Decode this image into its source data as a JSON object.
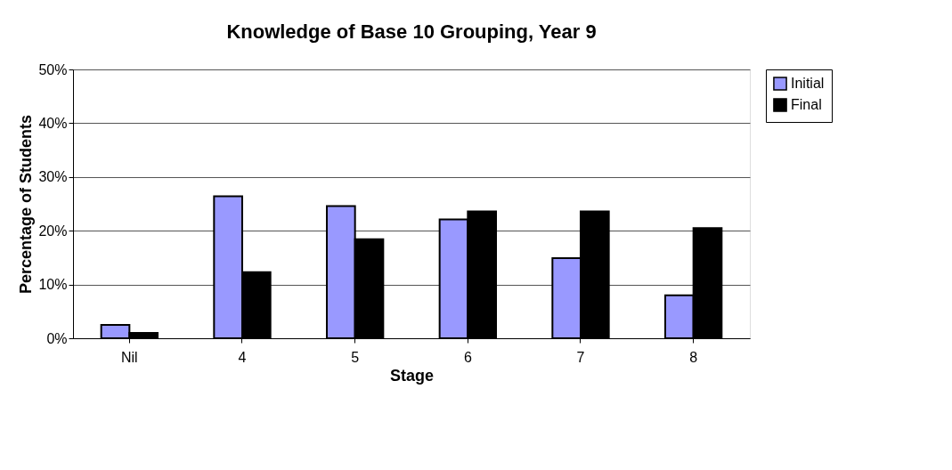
{
  "chart_data": {
    "type": "bar",
    "title": "Knowledge of Base 10 Grouping, Year 9",
    "xlabel": "Stage",
    "ylabel": "Percentage of Students",
    "categories": [
      "Nil",
      "4",
      "5",
      "6",
      "7",
      "8"
    ],
    "series": [
      {
        "name": "Initial",
        "color": "#9999ff",
        "values": [
          2.5,
          26.4,
          24.6,
          22.1,
          14.9,
          8.0
        ]
      },
      {
        "name": "Final",
        "color": "#000000",
        "values": [
          1.0,
          12.3,
          18.4,
          23.6,
          23.6,
          20.5
        ]
      }
    ],
    "ylim": [
      0,
      50
    ],
    "yticks": [
      {
        "value": 0,
        "label": "0%"
      },
      {
        "value": 10,
        "label": "10%"
      },
      {
        "value": 20,
        "label": "20%"
      },
      {
        "value": 30,
        "label": "30%"
      },
      {
        "value": 40,
        "label": "40%"
      },
      {
        "value": 50,
        "label": "50%"
      }
    ],
    "grid": "y",
    "legend": "right"
  }
}
